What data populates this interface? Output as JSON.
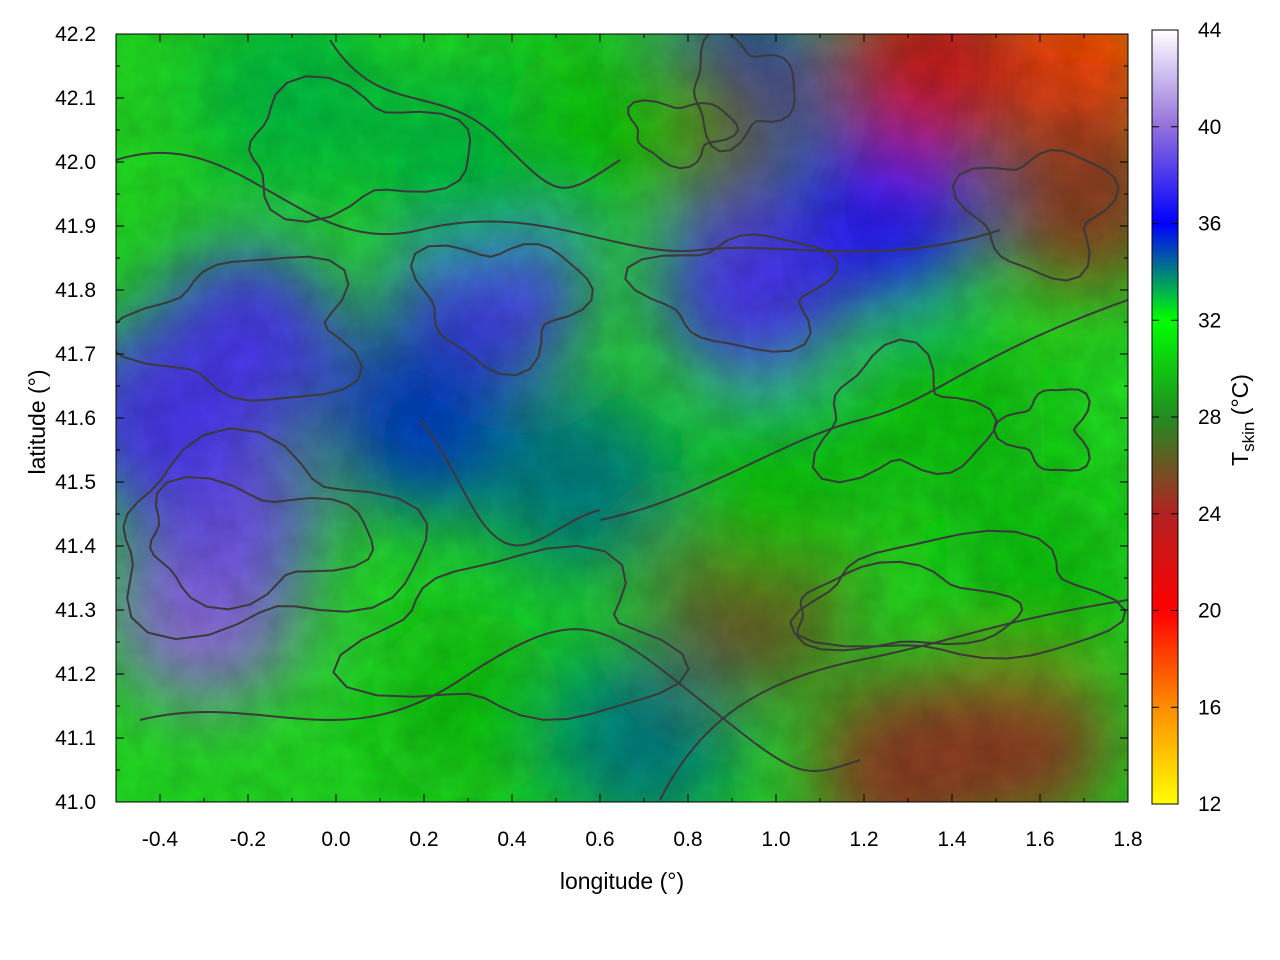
{
  "chart_data": {
    "type": "heatmap",
    "title": "",
    "xlabel": "longitude (°)",
    "ylabel": "latitude (°)",
    "xlim": [
      -0.5,
      1.8
    ],
    "ylim": [
      41.0,
      42.2
    ],
    "x_ticks": [
      "-0.4",
      "-0.2",
      "0.0",
      "0.2",
      "0.4",
      "0.6",
      "0.8",
      "1.0",
      "1.2",
      "1.4",
      "1.6",
      "1.8"
    ],
    "y_ticks": [
      "41.0",
      "41.1",
      "41.2",
      "41.3",
      "41.4",
      "41.5",
      "41.6",
      "41.7",
      "41.8",
      "41.9",
      "42.0",
      "42.1",
      "42.2"
    ],
    "colorbar": {
      "label_main": "T",
      "label_sub": "skin",
      "label_unit": " (°C)",
      "range": [
        12,
        44
      ],
      "ticks": [
        "12",
        "16",
        "20",
        "24",
        "28",
        "32",
        "36",
        "40",
        "44"
      ],
      "colors": [
        "#ffff00",
        "#ff8c00",
        "#ff0000",
        "#b22222",
        "#228b22",
        "#00ff00",
        "#0000ff",
        "#9370db",
        "#ffffff"
      ]
    },
    "approximate_field_blobs": [
      {
        "lon": -0.3,
        "lat": 41.3,
        "value": 40
      },
      {
        "lon": -0.25,
        "lat": 41.45,
        "value": 39
      },
      {
        "lon": -0.4,
        "lat": 41.6,
        "value": 38
      },
      {
        "lon": -0.2,
        "lat": 41.72,
        "value": 38
      },
      {
        "lon": 0.35,
        "lat": 41.8,
        "value": 38
      },
      {
        "lon": 0.95,
        "lat": 41.8,
        "value": 38
      },
      {
        "lon": 1.25,
        "lat": 41.92,
        "value": 37
      },
      {
        "lon": 0.2,
        "lat": 41.6,
        "value": 35
      },
      {
        "lon": 0.55,
        "lat": 41.5,
        "value": 34
      },
      {
        "lon": 0.7,
        "lat": 41.1,
        "value": 34
      },
      {
        "lon": 0.9,
        "lat": 42.12,
        "value": 35
      },
      {
        "lon": -0.1,
        "lat": 42.1,
        "value": 33
      },
      {
        "lon": 0.3,
        "lat": 42.0,
        "value": 33
      },
      {
        "lon": 1.7,
        "lat": 42.15,
        "value": 18
      },
      {
        "lon": 1.35,
        "lat": 42.15,
        "value": 23
      },
      {
        "lon": 1.7,
        "lat": 41.95,
        "value": 25
      },
      {
        "lon": 1.55,
        "lat": 41.1,
        "value": 25
      },
      {
        "lon": 1.3,
        "lat": 41.05,
        "value": 25
      },
      {
        "lon": 0.95,
        "lat": 41.32,
        "value": 26
      },
      {
        "lon": 0.8,
        "lat": 42.05,
        "value": 26
      },
      {
        "lon": 1.4,
        "lat": 41.6,
        "value": 30
      },
      {
        "lon": 0.3,
        "lat": 41.15,
        "value": 30
      },
      {
        "lon": 1.0,
        "lat": 41.5,
        "value": 30
      },
      {
        "lon": 0.6,
        "lat": 42.05,
        "value": 30
      },
      {
        "lon": 1.6,
        "lat": 41.35,
        "value": 30
      }
    ]
  }
}
